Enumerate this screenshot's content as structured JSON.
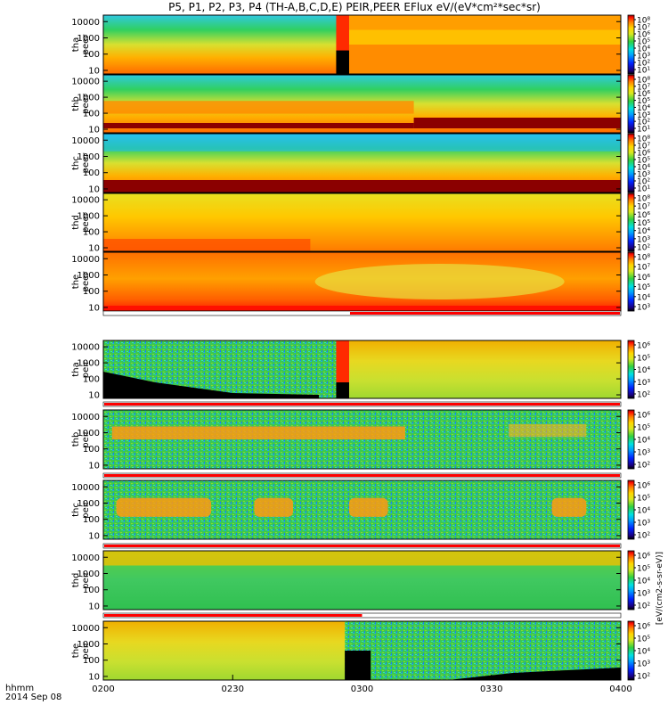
{
  "title": "P5, P1, P2, P3, P4 (TH-A,B,C,D,E) PEIR,PEER EFlux eV/(eV*cm²*sec*sr)",
  "x_axis": {
    "prefix": "hhmm",
    "date": "2014 Sep 08",
    "tick_labels": [
      "0200",
      "0230",
      "0300",
      "0330",
      "0400"
    ]
  },
  "chart_data": [
    {
      "type": "heatmap",
      "panel": "tha-peer",
      "ylabel": [
        "tha",
        "peer"
      ],
      "yticks": [
        "10000",
        "1000",
        "100",
        "10"
      ],
      "yscale": "log",
      "ylim": [
        6,
        25000
      ],
      "colorbar": {
        "ticks": [
          "10⁸",
          "10⁷",
          "10⁶",
          "10⁵",
          "10⁴",
          "10³",
          "10²",
          "10¹"
        ]
      }
    },
    {
      "type": "heatmap",
      "panel": "thb-peer",
      "ylabel": [
        "thb",
        "peer"
      ],
      "yticks": [
        "10000",
        "1000",
        "100",
        "10"
      ],
      "yscale": "log",
      "ylim": [
        6,
        25000
      ],
      "colorbar": {
        "ticks": [
          "10⁸",
          "10⁷",
          "10⁶",
          "10⁵",
          "10⁴",
          "10³",
          "10²",
          "10¹"
        ]
      }
    },
    {
      "type": "heatmap",
      "panel": "thc-peer",
      "ylabel": [
        "thc",
        "peer"
      ],
      "yticks": [
        "10000",
        "1000",
        "100",
        "10"
      ],
      "yscale": "log",
      "ylim": [
        6,
        25000
      ],
      "colorbar": {
        "ticks": [
          "10⁸",
          "10⁷",
          "10⁶",
          "10⁵",
          "10⁴",
          "10³",
          "10²",
          "10¹"
        ]
      }
    },
    {
      "type": "heatmap",
      "panel": "thd-peer",
      "ylabel": [
        "thd",
        "peer"
      ],
      "yticks": [
        "10000",
        "1000",
        "100",
        "10"
      ],
      "yscale": "log",
      "ylim": [
        6,
        25000
      ],
      "colorbar": {
        "ticks": [
          "10⁸",
          "10⁷",
          "10⁶",
          "10⁵",
          "10⁴",
          "10³",
          "10²"
        ]
      }
    },
    {
      "type": "heatmap",
      "panel": "the-peer",
      "ylabel": [
        "the",
        "peer"
      ],
      "yticks": [
        "10000",
        "1000",
        "100",
        "10"
      ],
      "yscale": "log",
      "ylim": [
        6,
        25000
      ],
      "colorbar": {
        "ticks": [
          "10⁸",
          "10⁷",
          "10⁶",
          "10⁵",
          "10⁴",
          "10³"
        ]
      }
    },
    {
      "type": "heatmap",
      "panel": "tha-peir",
      "ylabel": [
        "tha",
        "peir"
      ],
      "yticks": [
        "10000",
        "1000",
        "100",
        "10"
      ],
      "yscale": "log",
      "ylim": [
        6,
        25000
      ],
      "colorbar": {
        "ticks": [
          "10⁶",
          "10⁵",
          "10⁴",
          "10³",
          "10²"
        ]
      }
    },
    {
      "type": "heatmap",
      "panel": "thb-peir",
      "ylabel": [
        "thb",
        "peir"
      ],
      "yticks": [
        "10000",
        "1000",
        "100",
        "10"
      ],
      "yscale": "log",
      "ylim": [
        6,
        25000
      ],
      "colorbar": {
        "ticks": [
          "10⁶",
          "10⁵",
          "10⁴",
          "10³",
          "10²"
        ]
      }
    },
    {
      "type": "heatmap",
      "panel": "thc-peir",
      "ylabel": [
        "thc",
        "peir"
      ],
      "yticks": [
        "10000",
        "1000",
        "100",
        "10"
      ],
      "yscale": "log",
      "ylim": [
        6,
        25000
      ],
      "colorbar": {
        "ticks": [
          "10⁶",
          "10⁵",
          "10⁴",
          "10³",
          "10²"
        ]
      }
    },
    {
      "type": "heatmap",
      "panel": "thd-peir",
      "ylabel": [
        "thd",
        "peir"
      ],
      "yticks": [
        "10000",
        "1000",
        "100",
        "10"
      ],
      "yscale": "log",
      "ylim": [
        6,
        25000
      ],
      "colorbar": {
        "ticks": [
          "10⁶",
          "10⁵",
          "10⁴",
          "10³",
          "10²"
        ]
      }
    },
    {
      "type": "heatmap",
      "panel": "the-peir",
      "ylabel": [
        "the",
        "peir"
      ],
      "yticks": [
        "10000",
        "1000",
        "100",
        "10"
      ],
      "yscale": "log",
      "ylim": [
        6,
        25000
      ],
      "colorbar": {
        "ticks": [
          "10⁶",
          "10⁵",
          "10⁴",
          "10³",
          "10²"
        ]
      }
    }
  ],
  "colorbar_label": "[eV/(cm2-s-sr-eV)]",
  "colors": {
    "dark_red": "#8b0000",
    "red": "#ff2000",
    "orange": "#ff8a00",
    "yellow": "#ffd700",
    "green": "#38c838",
    "cyan": "#00d8e8",
    "blue": "#0022ff",
    "black": "#000000"
  }
}
